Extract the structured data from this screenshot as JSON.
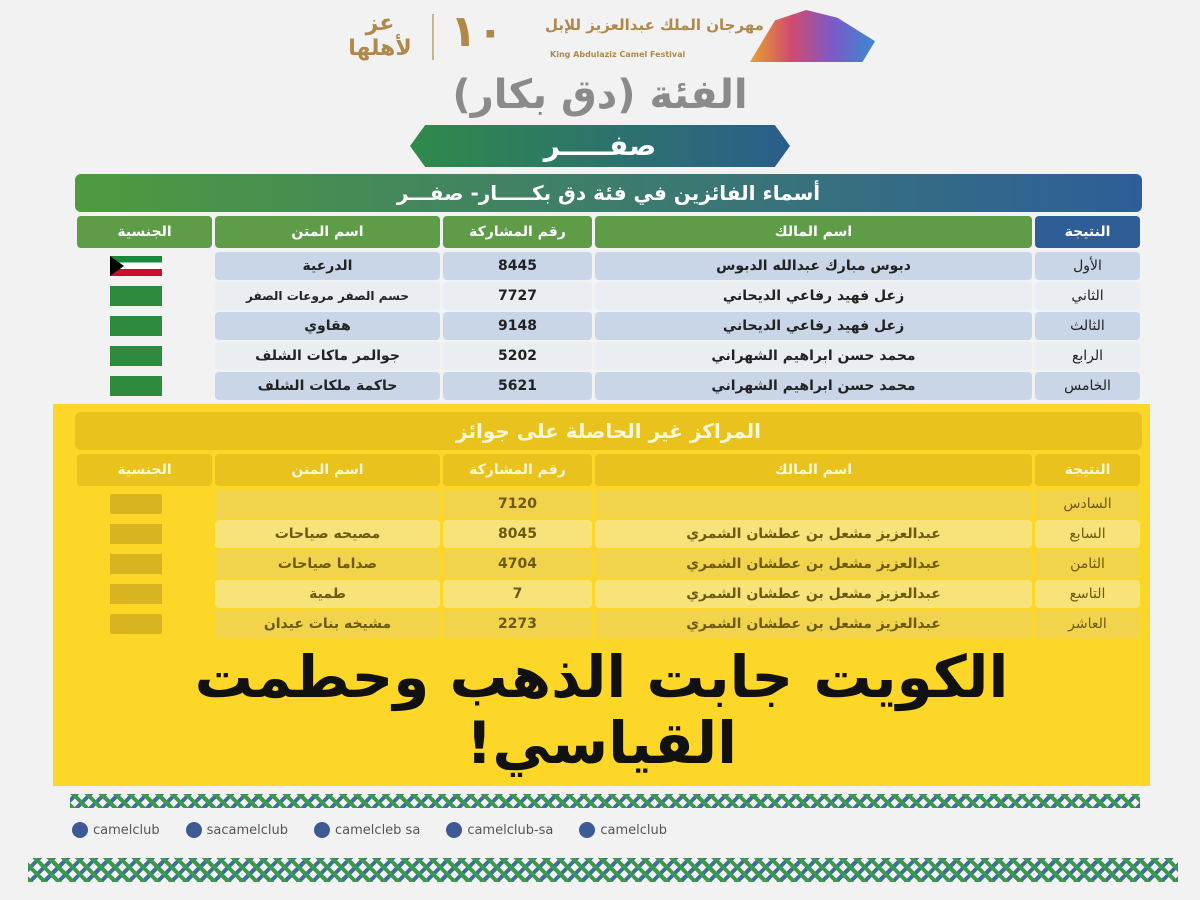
{
  "header": {
    "logo_tagline": "عز لأهلها",
    "edition": "١٠",
    "festival_ar": "مهرجان الملك عبدالعزيز للإبل",
    "festival_en": "King Abdulaziz Camel Festival"
  },
  "category_title": "الفئة (دق بكار)",
  "month": "صفـــــر",
  "winners": {
    "title": "أسماء الفائزين في فئة دق بكـــــار- صفـــر",
    "columns": [
      "النتيجة",
      "اسم المالك",
      "رقم المشاركة",
      "اسم المتن",
      "الجنسية"
    ],
    "rows": [
      {
        "result": "الأول",
        "owner": "دبوس مبارك عبدالله الدبوس",
        "number": "8445",
        "camel": "الدرعية",
        "nationality": "kuwait-flag"
      },
      {
        "result": "الثاني",
        "owner": "زعل فهيد رفاعي الديحاني",
        "number": "7727",
        "camel": "حسم الصفر مروعات الصفر",
        "nationality": "saudi-flag"
      },
      {
        "result": "الثالث",
        "owner": "زعل فهيد رفاعي الديحاني",
        "number": "9148",
        "camel": "هقاوي",
        "nationality": "saudi-flag"
      },
      {
        "result": "الرابع",
        "owner": "محمد حسن ابراهيم الشهراني",
        "number": "5202",
        "camel": "جوالمر ماكات الشلف",
        "nationality": "saudi-flag"
      },
      {
        "result": "الخامس",
        "owner": "محمد حسن ابراهيم الشهراني",
        "number": "5621",
        "camel": "حاكمة ملكات الشلف",
        "nationality": "saudi-flag"
      }
    ]
  },
  "others": {
    "title": "المراكز غير الحاصلة على جوائز",
    "columns": [
      "النتيجة",
      "اسم المالك",
      "رقم المشاركة",
      "اسم المتن",
      "الجنسية"
    ],
    "rows": [
      {
        "result": "السادس",
        "owner": "",
        "number": "7120",
        "camel": ""
      },
      {
        "result": "السابع",
        "owner": "عبدالعزيز مشعل بن عطشان الشمري",
        "number": "8045",
        "camel": "مصيحه صياحات"
      },
      {
        "result": "الثامن",
        "owner": "عبدالعزيز مشعل بن عطشان الشمري",
        "number": "4704",
        "camel": "صداما صياحات"
      },
      {
        "result": "التاسع",
        "owner": "عبدالعزيز مشعل بن عطشان الشمري",
        "number": "7",
        "camel": "طمية"
      },
      {
        "result": "العاشر",
        "owner": "عبدالعزيز مشعل بن عطشان الشمري",
        "number": "2273",
        "camel": "مشيخه بنات عيدان"
      }
    ]
  },
  "headline": "الكويت جابت الذهب وحطمت القياسي!",
  "social": [
    {
      "icon": "x-icon",
      "handle": "camelclub"
    },
    {
      "icon": "facebook-icon",
      "handle": "sacamelclub"
    },
    {
      "icon": "tiktok-instagram-icon",
      "handle": "camelcleb sa"
    },
    {
      "icon": "snapchat-icon",
      "handle": "camelclub-sa"
    },
    {
      "icon": "linkedin-icon",
      "handle": "camelclub"
    }
  ],
  "colors": {
    "green": "#5e9c48",
    "blue": "#2f5d95",
    "overlay": "#fdd728"
  }
}
